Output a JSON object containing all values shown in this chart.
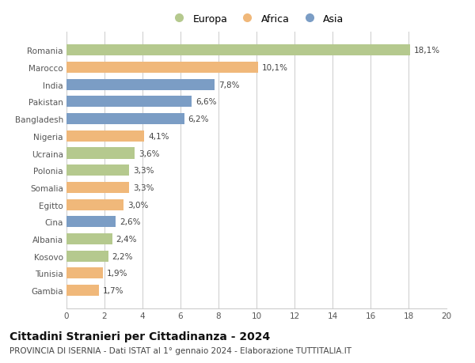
{
  "categories": [
    "Romania",
    "Marocco",
    "India",
    "Pakistan",
    "Bangladesh",
    "Nigeria",
    "Ucraina",
    "Polonia",
    "Somalia",
    "Egitto",
    "Cina",
    "Albania",
    "Kosovo",
    "Tunisia",
    "Gambia"
  ],
  "values": [
    18.1,
    10.1,
    7.8,
    6.6,
    6.2,
    4.1,
    3.6,
    3.3,
    3.3,
    3.0,
    2.6,
    2.4,
    2.2,
    1.9,
    1.7
  ],
  "labels": [
    "18,1%",
    "10,1%",
    "7,8%",
    "6,6%",
    "6,2%",
    "4,1%",
    "3,6%",
    "3,3%",
    "3,3%",
    "3,0%",
    "2,6%",
    "2,4%",
    "2,2%",
    "1,9%",
    "1,7%"
  ],
  "continents": [
    "Europa",
    "Africa",
    "Asia",
    "Asia",
    "Asia",
    "Africa",
    "Europa",
    "Europa",
    "Africa",
    "Africa",
    "Asia",
    "Europa",
    "Europa",
    "Africa",
    "Africa"
  ],
  "colors": {
    "Europa": "#b5c98e",
    "Africa": "#f0b87a",
    "Asia": "#7b9dc5"
  },
  "legend_labels": [
    "Europa",
    "Africa",
    "Asia"
  ],
  "title": "Cittadini Stranieri per Cittadinanza - 2024",
  "subtitle": "PROVINCIA DI ISERNIA - Dati ISTAT al 1° gennaio 2024 - Elaborazione TUTTITALIA.IT",
  "xlim": [
    0,
    20
  ],
  "xticks": [
    0,
    2,
    4,
    6,
    8,
    10,
    12,
    14,
    16,
    18,
    20
  ],
  "background_color": "#ffffff",
  "grid_color": "#cccccc",
  "bar_height": 0.65,
  "title_fontsize": 10,
  "subtitle_fontsize": 7.5,
  "label_fontsize": 7.5,
  "tick_fontsize": 7.5,
  "legend_fontsize": 9
}
